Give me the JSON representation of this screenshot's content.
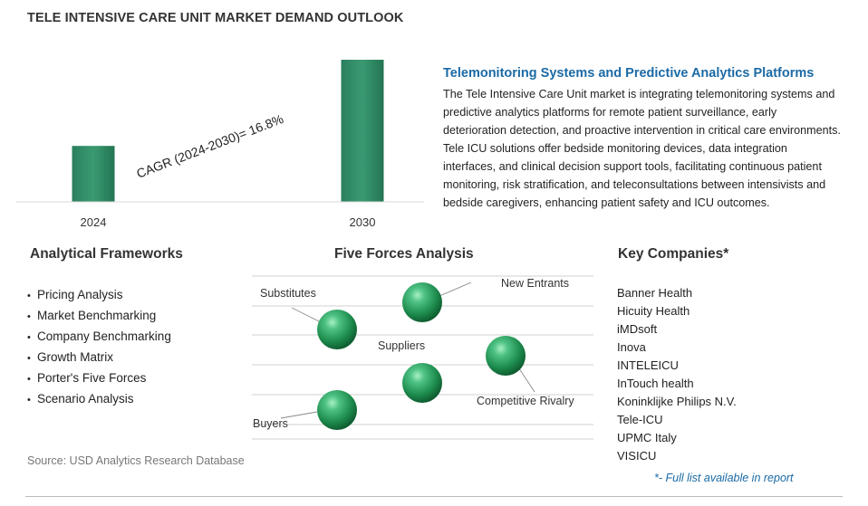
{
  "page": {
    "title": "TELE INTENSIVE CARE UNIT MARKET DEMAND OUTLOOK",
    "source": "Source: USD Analytics Research Database"
  },
  "chart_data": {
    "type": "bar",
    "categories": [
      "2024",
      "2030"
    ],
    "values": [
      1.0,
      2.54
    ],
    "annotation": "CAGR (2024-2030)=  16.8%",
    "bar_color": "#2e8a64"
  },
  "summary": {
    "headline": "Telemonitoring Systems and Predictive Analytics Platforms",
    "text": "The Tele Intensive Care Unit market is integrating telemonitoring systems and predictive analytics platforms for remote patient surveillance, early deterioration detection, and proactive intervention in critical care environments. Tele ICU solutions offer bedside monitoring devices, data integration interfaces, and clinical decision support tools, facilitating continuous patient monitoring, risk stratification, and teleconsultations between intensivists and bedside caregivers, enhancing patient safety and ICU outcomes."
  },
  "frameworks": {
    "title": "Analytical Frameworks",
    "items": [
      "Pricing Analysis",
      "Market Benchmarking",
      "Company Benchmarking",
      "Growth Matrix",
      "Porter's Five Forces",
      "Scenario Analysis"
    ]
  },
  "five_forces": {
    "title": "Five Forces Analysis",
    "labels": {
      "substitutes": "Substitutes",
      "new_entrants": "New Entrants",
      "suppliers": "Suppliers",
      "competitive_rivalry": "Competitive Rivalry",
      "buyers": "Buyers"
    }
  },
  "companies": {
    "title": "Key Companies*",
    "items": [
      "Banner Health",
      "Hicuity Health",
      "iMDsoft",
      "Inova",
      "INTELEICU",
      "InTouch health",
      "Koninklijke Philips N.V.",
      "Tele-ICU",
      "UPMC Italy",
      "VISICU"
    ],
    "footnote": "*- Full list available in report"
  }
}
